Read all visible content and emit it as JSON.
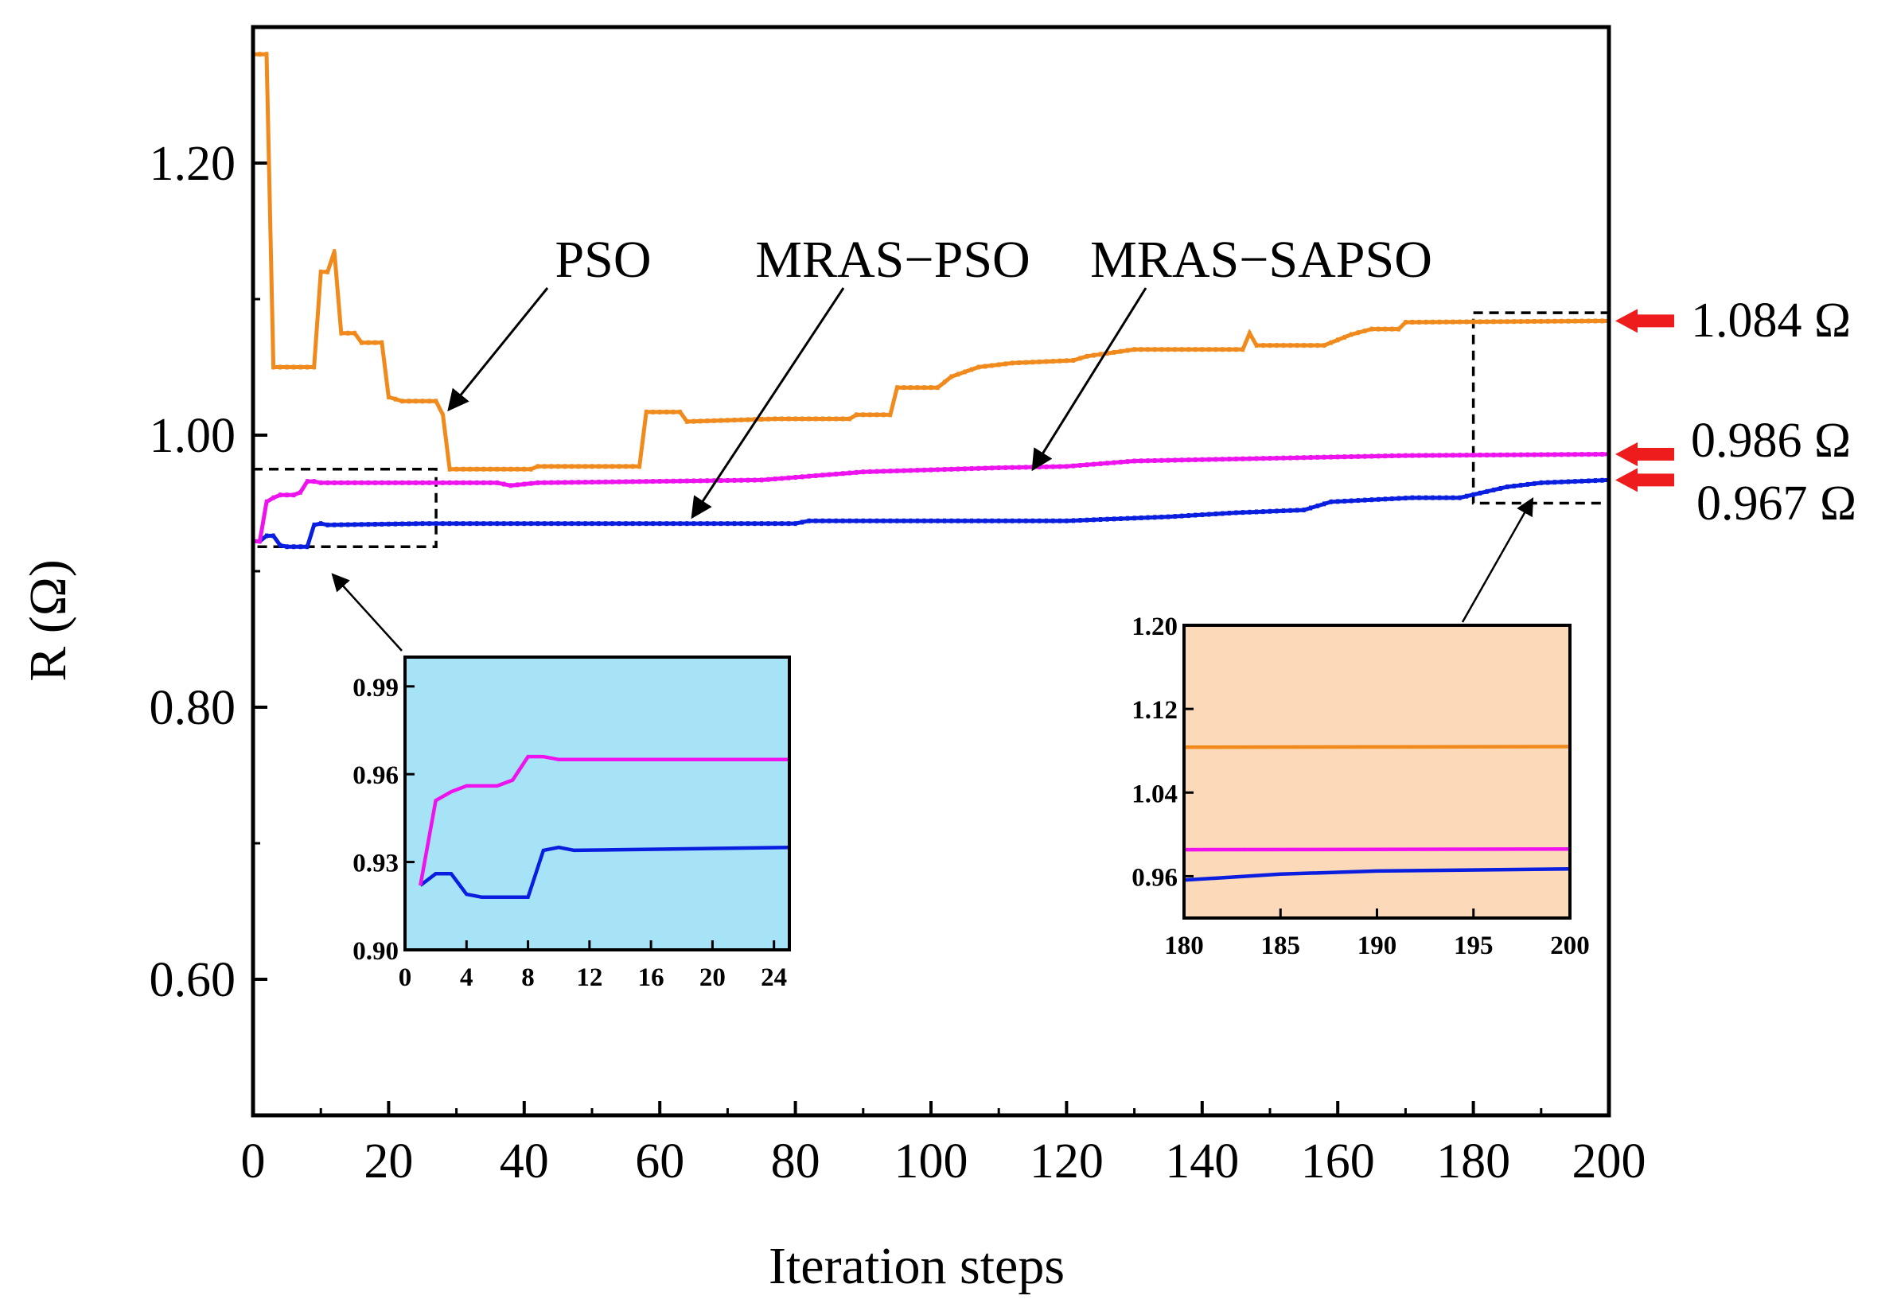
{
  "chart_data": {
    "type": "line",
    "title": "",
    "xlabel": "Iteration steps",
    "ylabel": "R (Ω)",
    "xlim": [
      0,
      200
    ],
    "ylim": [
      0.5,
      1.3
    ],
    "x_ticks": [
      "0",
      "20",
      "40",
      "60",
      "80",
      "100",
      "120",
      "140",
      "160",
      "180",
      "200"
    ],
    "y_ticks": [
      {
        "value": 0.6,
        "label": "0.60"
      },
      {
        "value": 0.8,
        "label": "0.80"
      },
      {
        "value": 1.0,
        "label": "1.00"
      },
      {
        "value": 1.2,
        "label": "1.20"
      }
    ],
    "series": [
      {
        "name": "PSO",
        "color": "#f08a1c",
        "points": [
          [
            0,
            1.28
          ],
          [
            2,
            1.28
          ],
          [
            3,
            1.05
          ],
          [
            9,
            1.05
          ],
          [
            10,
            1.12
          ],
          [
            11,
            1.12
          ],
          [
            12,
            1.135
          ],
          [
            13,
            1.075
          ],
          [
            15,
            1.075
          ],
          [
            16,
            1.068
          ],
          [
            19,
            1.068
          ],
          [
            20,
            1.028
          ],
          [
            22,
            1.025
          ],
          [
            27,
            1.025
          ],
          [
            28,
            1.015
          ],
          [
            29,
            0.975
          ],
          [
            41,
            0.975
          ],
          [
            42,
            0.977
          ],
          [
            57,
            0.977
          ],
          [
            58,
            1.017
          ],
          [
            63,
            1.017
          ],
          [
            64,
            1.01
          ],
          [
            77,
            1.012
          ],
          [
            88,
            1.012
          ],
          [
            89,
            1.015
          ],
          [
            94,
            1.015
          ],
          [
            95,
            1.035
          ],
          [
            101,
            1.035
          ],
          [
            103,
            1.043
          ],
          [
            107,
            1.05
          ],
          [
            112,
            1.053
          ],
          [
            121,
            1.055
          ],
          [
            123,
            1.058
          ],
          [
            130,
            1.063
          ],
          [
            146,
            1.063
          ],
          [
            147,
            1.075
          ],
          [
            148,
            1.066
          ],
          [
            158,
            1.066
          ],
          [
            162,
            1.074
          ],
          [
            165,
            1.078
          ],
          [
            169,
            1.078
          ],
          [
            170,
            1.083
          ],
          [
            200,
            1.084
          ]
        ]
      },
      {
        "name": "MRAS-PSO",
        "color": "#0a1ee0",
        "points": [
          [
            0,
            0.922
          ],
          [
            1,
            0.922
          ],
          [
            2,
            0.926
          ],
          [
            3,
            0.926
          ],
          [
            4,
            0.919
          ],
          [
            5,
            0.918
          ],
          [
            8,
            0.918
          ],
          [
            9,
            0.934
          ],
          [
            10,
            0.935
          ],
          [
            11,
            0.934
          ],
          [
            25,
            0.935
          ],
          [
            80,
            0.935
          ],
          [
            82,
            0.937
          ],
          [
            120,
            0.937
          ],
          [
            135,
            0.94
          ],
          [
            145,
            0.943
          ],
          [
            155,
            0.945
          ],
          [
            159,
            0.951
          ],
          [
            171,
            0.954
          ],
          [
            178,
            0.954
          ],
          [
            185,
            0.962
          ],
          [
            190,
            0.965
          ],
          [
            200,
            0.967
          ]
        ]
      },
      {
        "name": "MRAS-SAPSO",
        "color": "#ee12ee",
        "points": [
          [
            0,
            0.922
          ],
          [
            1,
            0.922
          ],
          [
            2,
            0.951
          ],
          [
            3,
            0.954
          ],
          [
            4,
            0.956
          ],
          [
            6,
            0.956
          ],
          [
            7,
            0.958
          ],
          [
            8,
            0.966
          ],
          [
            9,
            0.966
          ],
          [
            10,
            0.965
          ],
          [
            25,
            0.965
          ],
          [
            36,
            0.965
          ],
          [
            38,
            0.963
          ],
          [
            42,
            0.965
          ],
          [
            75,
            0.967
          ],
          [
            80,
            0.969
          ],
          [
            90,
            0.973
          ],
          [
            110,
            0.976
          ],
          [
            120,
            0.977
          ],
          [
            130,
            0.981
          ],
          [
            150,
            0.983
          ],
          [
            170,
            0.985
          ],
          [
            200,
            0.986
          ]
        ]
      }
    ],
    "annotations": [
      {
        "text": "PSO",
        "series": "PSO",
        "x": 29
      },
      {
        "text": "MRAS−PSO",
        "series": "MRAS-PSO",
        "x": 68
      },
      {
        "text": "MRAS−SAPSO",
        "series": "MRAS-SAPSO",
        "x": 115
      }
    ],
    "final_values": [
      {
        "text": "1.084 Ω",
        "value": 1.084,
        "series": "PSO"
      },
      {
        "text": "0.986 Ω",
        "value": 0.986,
        "series": "MRAS-SAPSO"
      },
      {
        "text": "0.967 Ω",
        "value": 0.967,
        "series": "MRAS-PSO"
      }
    ],
    "zoom_regions": [
      {
        "xlim": [
          0,
          27
        ],
        "ylim": [
          0.918,
          0.975
        ]
      },
      {
        "xlim": [
          180,
          200
        ],
        "ylim": [
          0.95,
          1.09
        ]
      }
    ],
    "insets": [
      {
        "name": "early-iterations",
        "background": "#a6e3f7",
        "xlim": [
          0,
          25
        ],
        "ylim": [
          0.9,
          1.0
        ],
        "x_ticks": [
          "0",
          "4",
          "8",
          "12",
          "16",
          "20",
          "24"
        ],
        "y_ticks": [
          "0.90",
          "0.93",
          "0.96",
          "0.99"
        ]
      },
      {
        "name": "final-iterations",
        "background": "#fcd9b9",
        "xlim": [
          180,
          200
        ],
        "ylim": [
          0.92,
          1.2
        ],
        "x_ticks": [
          "180",
          "185",
          "190",
          "195",
          "200"
        ],
        "y_ticks": [
          "0.96",
          "1.04",
          "1.12",
          "1.20"
        ]
      }
    ],
    "marker_color": "#ee1c1c"
  }
}
